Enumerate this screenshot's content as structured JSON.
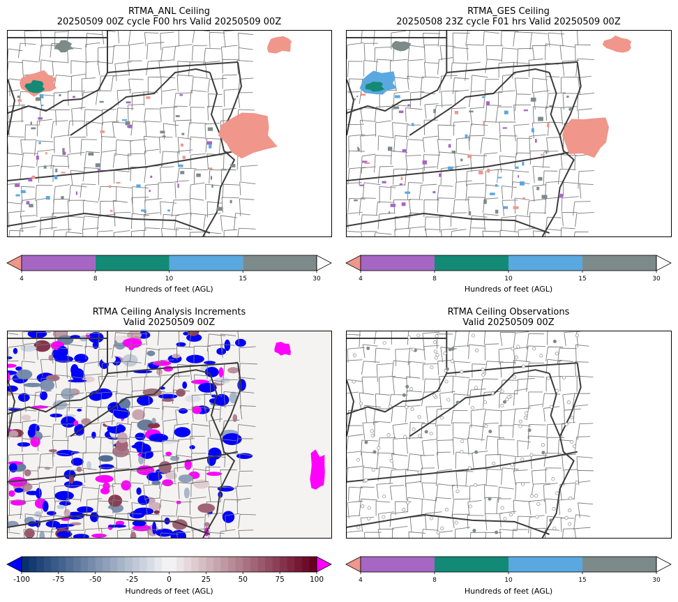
{
  "panels": [
    {
      "id": "anl",
      "title_line1": "RTMA_ANL Ceiling",
      "title_line2": "20250509 00Z cycle F00 hrs Valid 20250509 00Z",
      "colorbar": {
        "ticks": [
          "4",
          "8",
          "10",
          "15",
          "30"
        ],
        "label": "Hundreds of feet (AGL)"
      }
    },
    {
      "id": "ges",
      "title_line1": "RTMA_GES Ceiling",
      "title_line2": "20250508 23Z cycle F01 hrs Valid 20250509 00Z",
      "colorbar": {
        "ticks": [
          "4",
          "8",
          "10",
          "15",
          "30"
        ],
        "label": "Hundreds of feet (AGL)"
      }
    },
    {
      "id": "inc",
      "title_line1": "RTMA Ceiling Analysis Increments",
      "title_line2": "Valid 20250509 00Z",
      "colorbar": {
        "ticks": [
          "-100",
          "-75",
          "-50",
          "-25",
          "0",
          "25",
          "50",
          "75",
          "100"
        ],
        "label": "Hundreds of feet (AGL)"
      }
    },
    {
      "id": "obs",
      "title_line1": "RTMA Ceiling Observations",
      "title_line2": "Valid 20250509 00Z",
      "colorbar": {
        "ticks": [
          "4",
          "8",
          "10",
          "15",
          "30"
        ],
        "label": "Hundreds of feet (AGL)"
      }
    }
  ],
  "ceiling_levels": [
    4,
    8,
    10,
    15,
    30
  ],
  "ceiling_colors": {
    "under": "#f0968a",
    "c4_8": "#a566c4",
    "c8_10": "#138a75",
    "c10_15": "#5aa8e0",
    "c15_30": "#7d8a8a",
    "over": "#ffffff"
  },
  "increment_colors": {
    "under": "#0000ff",
    "over": "#ff00ff",
    "range": [
      -100,
      100
    ],
    "negative_end": "#08306b",
    "mid": "#f7f7f7",
    "positive_end": "#67001f"
  }
}
